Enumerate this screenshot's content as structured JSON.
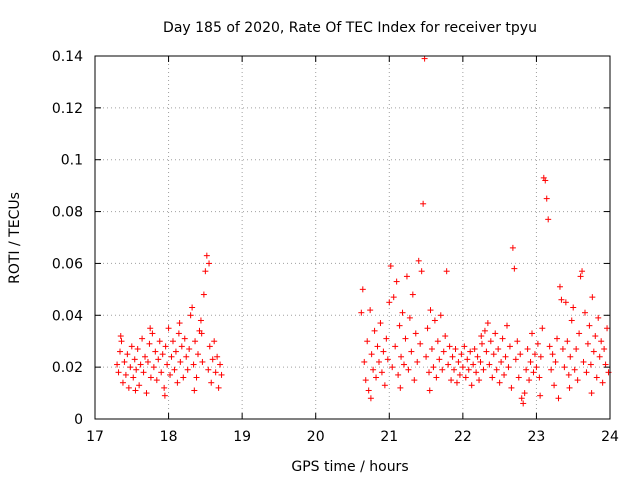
{
  "chart_data": {
    "type": "scatter",
    "title": "Day 185 of 2020, Rate Of TEC Index for receiver tpyu",
    "xlabel": "GPS time / hours",
    "ylabel": "ROTI / TECUs",
    "xlim": [
      17,
      24
    ],
    "ylim": [
      0,
      0.14
    ],
    "xticks": [
      17,
      18,
      19,
      20,
      21,
      22,
      23,
      24
    ],
    "yticks": [
      0,
      0.02,
      0.04,
      0.06,
      0.08,
      0.1,
      0.12,
      0.14
    ],
    "xtick_labels": [
      "17",
      "18",
      "19",
      "20",
      "21",
      "22",
      "23",
      "24"
    ],
    "ytick_labels": [
      "0",
      "0.02",
      "0.04",
      "0.06",
      "0.08",
      "0.1",
      "0.12",
      "0.14"
    ],
    "grid": true,
    "marker": "+",
    "color": "#ff0000",
    "series": [
      {
        "name": "tpyu",
        "points": [
          [
            17.3,
            0.021
          ],
          [
            17.32,
            0.018
          ],
          [
            17.34,
            0.026
          ],
          [
            17.36,
            0.03
          ],
          [
            17.38,
            0.014
          ],
          [
            17.4,
            0.022
          ],
          [
            17.42,
            0.017
          ],
          [
            17.44,
            0.025
          ],
          [
            17.46,
            0.012
          ],
          [
            17.48,
            0.02
          ],
          [
            17.5,
            0.028
          ],
          [
            17.52,
            0.016
          ],
          [
            17.54,
            0.023
          ],
          [
            17.56,
            0.019
          ],
          [
            17.58,
            0.027
          ],
          [
            17.6,
            0.013
          ],
          [
            17.62,
            0.021
          ],
          [
            17.64,
            0.031
          ],
          [
            17.66,
            0.018
          ],
          [
            17.68,
            0.024
          ],
          [
            17.7,
            0.01
          ],
          [
            17.72,
            0.022
          ],
          [
            17.74,
            0.029
          ],
          [
            17.76,
            0.016
          ],
          [
            17.78,
            0.033
          ],
          [
            17.8,
            0.02
          ],
          [
            17.82,
            0.026
          ],
          [
            17.84,
            0.015
          ],
          [
            17.86,
            0.023
          ],
          [
            17.88,
            0.03
          ],
          [
            17.9,
            0.018
          ],
          [
            17.92,
            0.025
          ],
          [
            17.94,
            0.012
          ],
          [
            17.96,
            0.028
          ],
          [
            17.98,
            0.021
          ],
          [
            18.0,
            0.035
          ],
          [
            18.02,
            0.017
          ],
          [
            18.04,
            0.024
          ],
          [
            18.06,
            0.03
          ],
          [
            18.08,
            0.019
          ],
          [
            18.1,
            0.026
          ],
          [
            18.12,
            0.014
          ],
          [
            18.14,
            0.033
          ],
          [
            18.16,
            0.022
          ],
          [
            18.18,
            0.028
          ],
          [
            18.2,
            0.016
          ],
          [
            18.22,
            0.031
          ],
          [
            18.24,
            0.024
          ],
          [
            18.26,
            0.019
          ],
          [
            18.28,
            0.027
          ],
          [
            18.3,
            0.04
          ],
          [
            18.32,
            0.043
          ],
          [
            18.34,
            0.021
          ],
          [
            18.36,
            0.03
          ],
          [
            18.38,
            0.016
          ],
          [
            18.4,
            0.025
          ],
          [
            18.42,
            0.034
          ],
          [
            18.44,
            0.038
          ],
          [
            18.46,
            0.022
          ],
          [
            18.48,
            0.048
          ],
          [
            18.5,
            0.057
          ],
          [
            18.52,
            0.063
          ],
          [
            18.54,
            0.019
          ],
          [
            18.56,
            0.028
          ],
          [
            18.58,
            0.014
          ],
          [
            18.6,
            0.023
          ],
          [
            18.62,
            0.03
          ],
          [
            18.64,
            0.018
          ],
          [
            18.66,
            0.024
          ],
          [
            18.68,
            0.012
          ],
          [
            18.7,
            0.021
          ],
          [
            18.72,
            0.017
          ],
          [
            17.35,
            0.032
          ],
          [
            17.55,
            0.011
          ],
          [
            17.75,
            0.035
          ],
          [
            17.95,
            0.009
          ],
          [
            18.15,
            0.037
          ],
          [
            18.35,
            0.011
          ],
          [
            18.55,
            0.06
          ],
          [
            18.45,
            0.033
          ],
          [
            20.62,
            0.041
          ],
          [
            20.64,
            0.05
          ],
          [
            20.66,
            0.022
          ],
          [
            20.68,
            0.015
          ],
          [
            20.7,
            0.03
          ],
          [
            20.72,
            0.011
          ],
          [
            20.74,
            0.042
          ],
          [
            20.76,
            0.025
          ],
          [
            20.78,
            0.019
          ],
          [
            20.8,
            0.034
          ],
          [
            20.82,
            0.016
          ],
          [
            20.84,
            0.028
          ],
          [
            20.86,
            0.022
          ],
          [
            20.88,
            0.037
          ],
          [
            20.9,
            0.018
          ],
          [
            20.92,
            0.026
          ],
          [
            20.94,
            0.013
          ],
          [
            20.96,
            0.031
          ],
          [
            20.98,
            0.023
          ],
          [
            21.0,
            0.045
          ],
          [
            21.02,
            0.059
          ],
          [
            21.04,
            0.02
          ],
          [
            21.06,
            0.047
          ],
          [
            21.08,
            0.028
          ],
          [
            21.1,
            0.053
          ],
          [
            21.12,
            0.017
          ],
          [
            21.14,
            0.036
          ],
          [
            21.16,
            0.024
          ],
          [
            21.18,
            0.041
          ],
          [
            21.2,
            0.021
          ],
          [
            21.22,
            0.031
          ],
          [
            21.24,
            0.055
          ],
          [
            21.26,
            0.019
          ],
          [
            21.28,
            0.039
          ],
          [
            21.3,
            0.026
          ],
          [
            21.32,
            0.048
          ],
          [
            21.34,
            0.015
          ],
          [
            21.36,
            0.033
          ],
          [
            21.38,
            0.022
          ],
          [
            21.4,
            0.061
          ],
          [
            21.42,
            0.029
          ],
          [
            21.44,
            0.057
          ],
          [
            21.46,
            0.083
          ],
          [
            21.48,
            0.139
          ],
          [
            21.5,
            0.024
          ],
          [
            21.52,
            0.035
          ],
          [
            21.54,
            0.018
          ],
          [
            21.56,
            0.042
          ],
          [
            21.58,
            0.027
          ],
          [
            21.6,
            0.02
          ],
          [
            21.62,
            0.038
          ],
          [
            21.64,
            0.016
          ],
          [
            21.66,
            0.03
          ],
          [
            21.68,
            0.023
          ],
          [
            21.7,
            0.04
          ],
          [
            21.72,
            0.019
          ],
          [
            21.74,
            0.026
          ],
          [
            21.76,
            0.032
          ],
          [
            21.78,
            0.057
          ],
          [
            21.8,
            0.021
          ],
          [
            21.82,
            0.028
          ],
          [
            21.84,
            0.015
          ],
          [
            21.86,
            0.024
          ],
          [
            21.88,
            0.019
          ],
          [
            21.9,
            0.027
          ],
          [
            21.92,
            0.014
          ],
          [
            21.94,
            0.022
          ],
          [
            21.96,
            0.017
          ],
          [
            21.98,
            0.025
          ],
          [
            22.0,
            0.02
          ],
          [
            22.02,
            0.028
          ],
          [
            22.04,
            0.016
          ],
          [
            22.06,
            0.023
          ],
          [
            22.08,
            0.019
          ],
          [
            22.1,
            0.026
          ],
          [
            22.12,
            0.013
          ],
          [
            22.14,
            0.021
          ],
          [
            22.16,
            0.027
          ],
          [
            22.18,
            0.018
          ],
          [
            22.2,
            0.024
          ],
          [
            22.22,
            0.015
          ],
          [
            22.24,
            0.022
          ],
          [
            22.26,
            0.029
          ],
          [
            22.28,
            0.019
          ],
          [
            22.3,
            0.034
          ],
          [
            22.32,
            0.026
          ],
          [
            22.34,
            0.037
          ],
          [
            22.36,
            0.021
          ],
          [
            22.38,
            0.03
          ],
          [
            22.4,
            0.016
          ],
          [
            22.42,
            0.025
          ],
          [
            22.44,
            0.033
          ],
          [
            22.46,
            0.019
          ],
          [
            22.48,
            0.027
          ],
          [
            22.5,
            0.014
          ],
          [
            22.52,
            0.022
          ],
          [
            22.54,
            0.031
          ],
          [
            22.56,
            0.017
          ],
          [
            22.58,
            0.024
          ],
          [
            22.6,
            0.036
          ],
          [
            22.62,
            0.02
          ],
          [
            22.64,
            0.028
          ],
          [
            22.66,
            0.012
          ],
          [
            22.68,
            0.066
          ],
          [
            22.7,
            0.058
          ],
          [
            22.72,
            0.023
          ],
          [
            22.74,
            0.03
          ],
          [
            22.76,
            0.016
          ],
          [
            22.78,
            0.025
          ],
          [
            22.8,
            0.008
          ],
          [
            22.82,
            0.006
          ],
          [
            22.84,
            0.01
          ],
          [
            22.86,
            0.019
          ],
          [
            22.88,
            0.027
          ],
          [
            22.9,
            0.015
          ],
          [
            22.92,
            0.022
          ],
          [
            22.94,
            0.033
          ],
          [
            22.96,
            0.018
          ],
          [
            22.98,
            0.025
          ],
          [
            23.0,
            0.02
          ],
          [
            23.02,
            0.029
          ],
          [
            23.04,
            0.016
          ],
          [
            23.06,
            0.024
          ],
          [
            23.08,
            0.035
          ],
          [
            23.1,
            0.093
          ],
          [
            23.12,
            0.092
          ],
          [
            23.14,
            0.085
          ],
          [
            23.16,
            0.077
          ],
          [
            23.18,
            0.028
          ],
          [
            23.2,
            0.019
          ],
          [
            23.22,
            0.025
          ],
          [
            23.24,
            0.013
          ],
          [
            23.26,
            0.022
          ],
          [
            23.28,
            0.031
          ],
          [
            23.3,
            0.008
          ],
          [
            23.32,
            0.051
          ],
          [
            23.34,
            0.046
          ],
          [
            23.36,
            0.027
          ],
          [
            23.38,
            0.02
          ],
          [
            23.4,
            0.045
          ],
          [
            23.42,
            0.03
          ],
          [
            23.44,
            0.017
          ],
          [
            23.46,
            0.024
          ],
          [
            23.48,
            0.038
          ],
          [
            23.5,
            0.043
          ],
          [
            23.52,
            0.019
          ],
          [
            23.54,
            0.027
          ],
          [
            23.56,
            0.015
          ],
          [
            23.58,
            0.033
          ],
          [
            23.6,
            0.055
          ],
          [
            23.62,
            0.057
          ],
          [
            23.64,
            0.022
          ],
          [
            23.66,
            0.041
          ],
          [
            23.68,
            0.018
          ],
          [
            23.7,
            0.029
          ],
          [
            23.72,
            0.036
          ],
          [
            23.74,
            0.021
          ],
          [
            23.76,
            0.047
          ],
          [
            23.78,
            0.026
          ],
          [
            23.8,
            0.032
          ],
          [
            23.82,
            0.016
          ],
          [
            23.84,
            0.039
          ],
          [
            23.86,
            0.024
          ],
          [
            23.88,
            0.03
          ],
          [
            23.9,
            0.014
          ],
          [
            23.92,
            0.027
          ],
          [
            23.94,
            0.021
          ],
          [
            23.96,
            0.035
          ],
          [
            23.98,
            0.018
          ],
          [
            20.75,
            0.008
          ],
          [
            21.15,
            0.012
          ],
          [
            21.55,
            0.011
          ],
          [
            22.25,
            0.032
          ],
          [
            23.05,
            0.009
          ],
          [
            23.45,
            0.012
          ],
          [
            23.75,
            0.01
          ]
        ]
      }
    ]
  }
}
